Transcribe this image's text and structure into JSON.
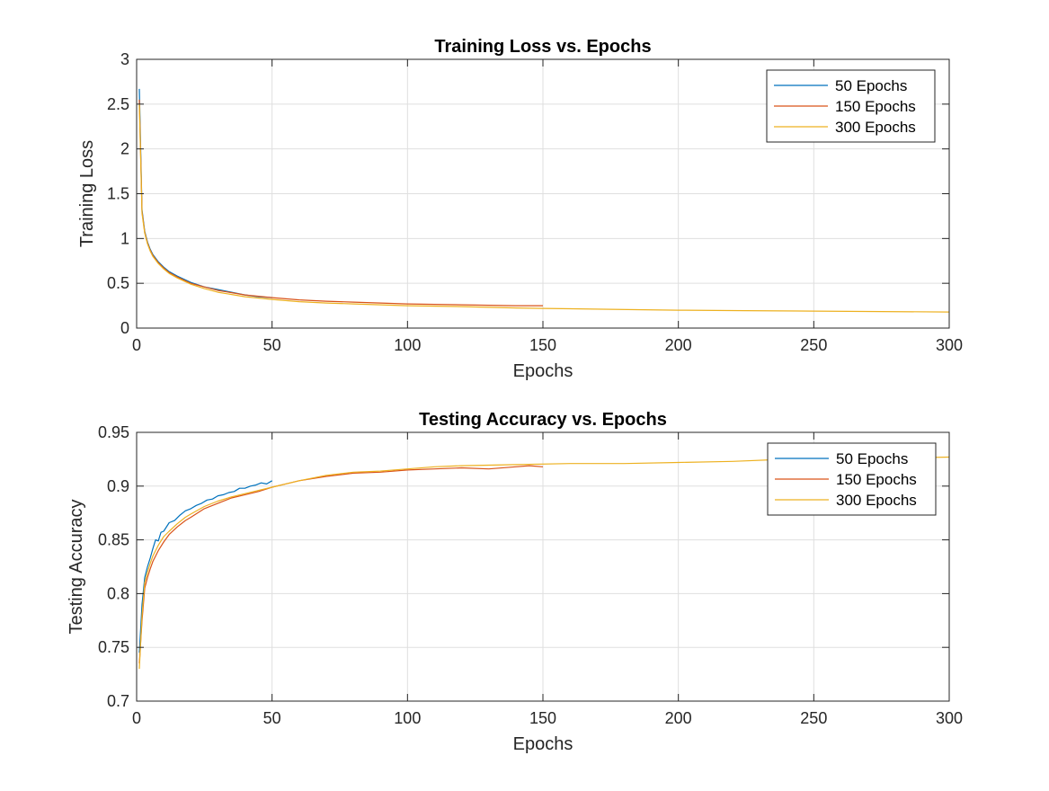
{
  "chart_data": [
    {
      "type": "line",
      "title": "Training Loss vs. Epochs",
      "xlabel": "Epochs",
      "ylabel": "Training Loss",
      "xlim": [
        0,
        300
      ],
      "ylim": [
        0,
        3
      ],
      "xticks": [
        "0",
        "50",
        "100",
        "150",
        "200",
        "250",
        "300"
      ],
      "yticks": [
        "0",
        "0.5",
        "1",
        "1.5",
        "2",
        "2.5",
        "3"
      ],
      "grid": true,
      "legend_position": "top-right",
      "series": [
        {
          "name": "50 Epochs",
          "color": "#0072BD",
          "x": [
            1,
            2,
            3,
            4,
            5,
            6,
            8,
            10,
            12,
            15,
            20,
            25,
            30,
            35,
            40,
            45,
            50
          ],
          "y": [
            2.67,
            1.32,
            1.08,
            0.96,
            0.88,
            0.82,
            0.74,
            0.68,
            0.63,
            0.58,
            0.51,
            0.46,
            0.43,
            0.4,
            0.37,
            0.35,
            0.34
          ]
        },
        {
          "name": "150 Epochs",
          "color": "#D95319",
          "x": [
            1,
            2,
            3,
            4,
            5,
            6,
            8,
            10,
            12,
            15,
            20,
            25,
            30,
            40,
            50,
            60,
            70,
            80,
            90,
            100,
            110,
            120,
            130,
            140,
            150
          ],
          "y": [
            2.55,
            1.3,
            1.07,
            0.95,
            0.87,
            0.81,
            0.73,
            0.67,
            0.62,
            0.57,
            0.5,
            0.46,
            0.42,
            0.37,
            0.34,
            0.315,
            0.3,
            0.29,
            0.28,
            0.27,
            0.265,
            0.26,
            0.255,
            0.25,
            0.25
          ]
        },
        {
          "name": "300 Epochs",
          "color": "#EDB120",
          "x": [
            1,
            2,
            3,
            4,
            5,
            6,
            8,
            10,
            12,
            15,
            20,
            25,
            30,
            40,
            50,
            60,
            70,
            80,
            90,
            100,
            120,
            140,
            150,
            175,
            200,
            225,
            250,
            275,
            300
          ],
          "y": [
            2.5,
            1.28,
            1.06,
            0.94,
            0.86,
            0.8,
            0.72,
            0.66,
            0.61,
            0.56,
            0.49,
            0.44,
            0.4,
            0.35,
            0.32,
            0.295,
            0.28,
            0.27,
            0.26,
            0.25,
            0.24,
            0.225,
            0.22,
            0.21,
            0.2,
            0.195,
            0.19,
            0.185,
            0.18
          ]
        }
      ]
    },
    {
      "type": "line",
      "title": "Testing Accuracy vs. Epochs",
      "xlabel": "Epochs",
      "ylabel": "Testing Accuracy",
      "xlim": [
        0,
        300
      ],
      "ylim": [
        0.7,
        0.95
      ],
      "xticks": [
        "0",
        "50",
        "100",
        "150",
        "200",
        "250",
        "300"
      ],
      "yticks": [
        "0.7",
        "0.75",
        "0.8",
        "0.85",
        "0.9",
        "0.95"
      ],
      "grid": true,
      "legend_position": "top-right",
      "series": [
        {
          "name": "50 Epochs",
          "color": "#0072BD",
          "x": [
            1,
            2,
            3,
            4,
            5,
            6,
            7,
            8,
            9,
            10,
            12,
            14,
            16,
            18,
            20,
            22,
            24,
            26,
            28,
            30,
            32,
            34,
            36,
            38,
            40,
            42,
            44,
            46,
            48,
            50
          ],
          "y": [
            0.745,
            0.79,
            0.815,
            0.825,
            0.833,
            0.842,
            0.85,
            0.849,
            0.857,
            0.858,
            0.866,
            0.868,
            0.873,
            0.877,
            0.879,
            0.882,
            0.884,
            0.887,
            0.888,
            0.891,
            0.892,
            0.894,
            0.895,
            0.898,
            0.898,
            0.9,
            0.901,
            0.903,
            0.902,
            0.905
          ]
        },
        {
          "name": "150 Epochs",
          "color": "#D95319",
          "x": [
            1,
            2,
            3,
            4,
            5,
            6,
            8,
            10,
            12,
            15,
            18,
            20,
            25,
            30,
            35,
            40,
            45,
            50,
            55,
            60,
            70,
            80,
            90,
            100,
            110,
            120,
            130,
            140,
            145,
            150
          ],
          "y": [
            0.735,
            0.775,
            0.805,
            0.815,
            0.823,
            0.83,
            0.84,
            0.848,
            0.855,
            0.862,
            0.868,
            0.871,
            0.879,
            0.884,
            0.889,
            0.892,
            0.895,
            0.899,
            0.902,
            0.905,
            0.909,
            0.912,
            0.913,
            0.915,
            0.916,
            0.917,
            0.916,
            0.918,
            0.919,
            0.918
          ]
        },
        {
          "name": "300 Epochs",
          "color": "#EDB120",
          "x": [
            1,
            2,
            3,
            4,
            5,
            6,
            8,
            10,
            12,
            15,
            18,
            20,
            25,
            30,
            35,
            40,
            45,
            50,
            55,
            60,
            70,
            80,
            90,
            100,
            110,
            120,
            140,
            160,
            180,
            200,
            220,
            240,
            260,
            280,
            300
          ],
          "y": [
            0.73,
            0.78,
            0.81,
            0.82,
            0.828,
            0.835,
            0.845,
            0.853,
            0.858,
            0.865,
            0.871,
            0.874,
            0.881,
            0.886,
            0.89,
            0.893,
            0.896,
            0.899,
            0.902,
            0.905,
            0.91,
            0.913,
            0.914,
            0.916,
            0.918,
            0.919,
            0.92,
            0.921,
            0.921,
            0.922,
            0.923,
            0.925,
            0.925,
            0.926,
            0.927
          ]
        }
      ]
    }
  ]
}
